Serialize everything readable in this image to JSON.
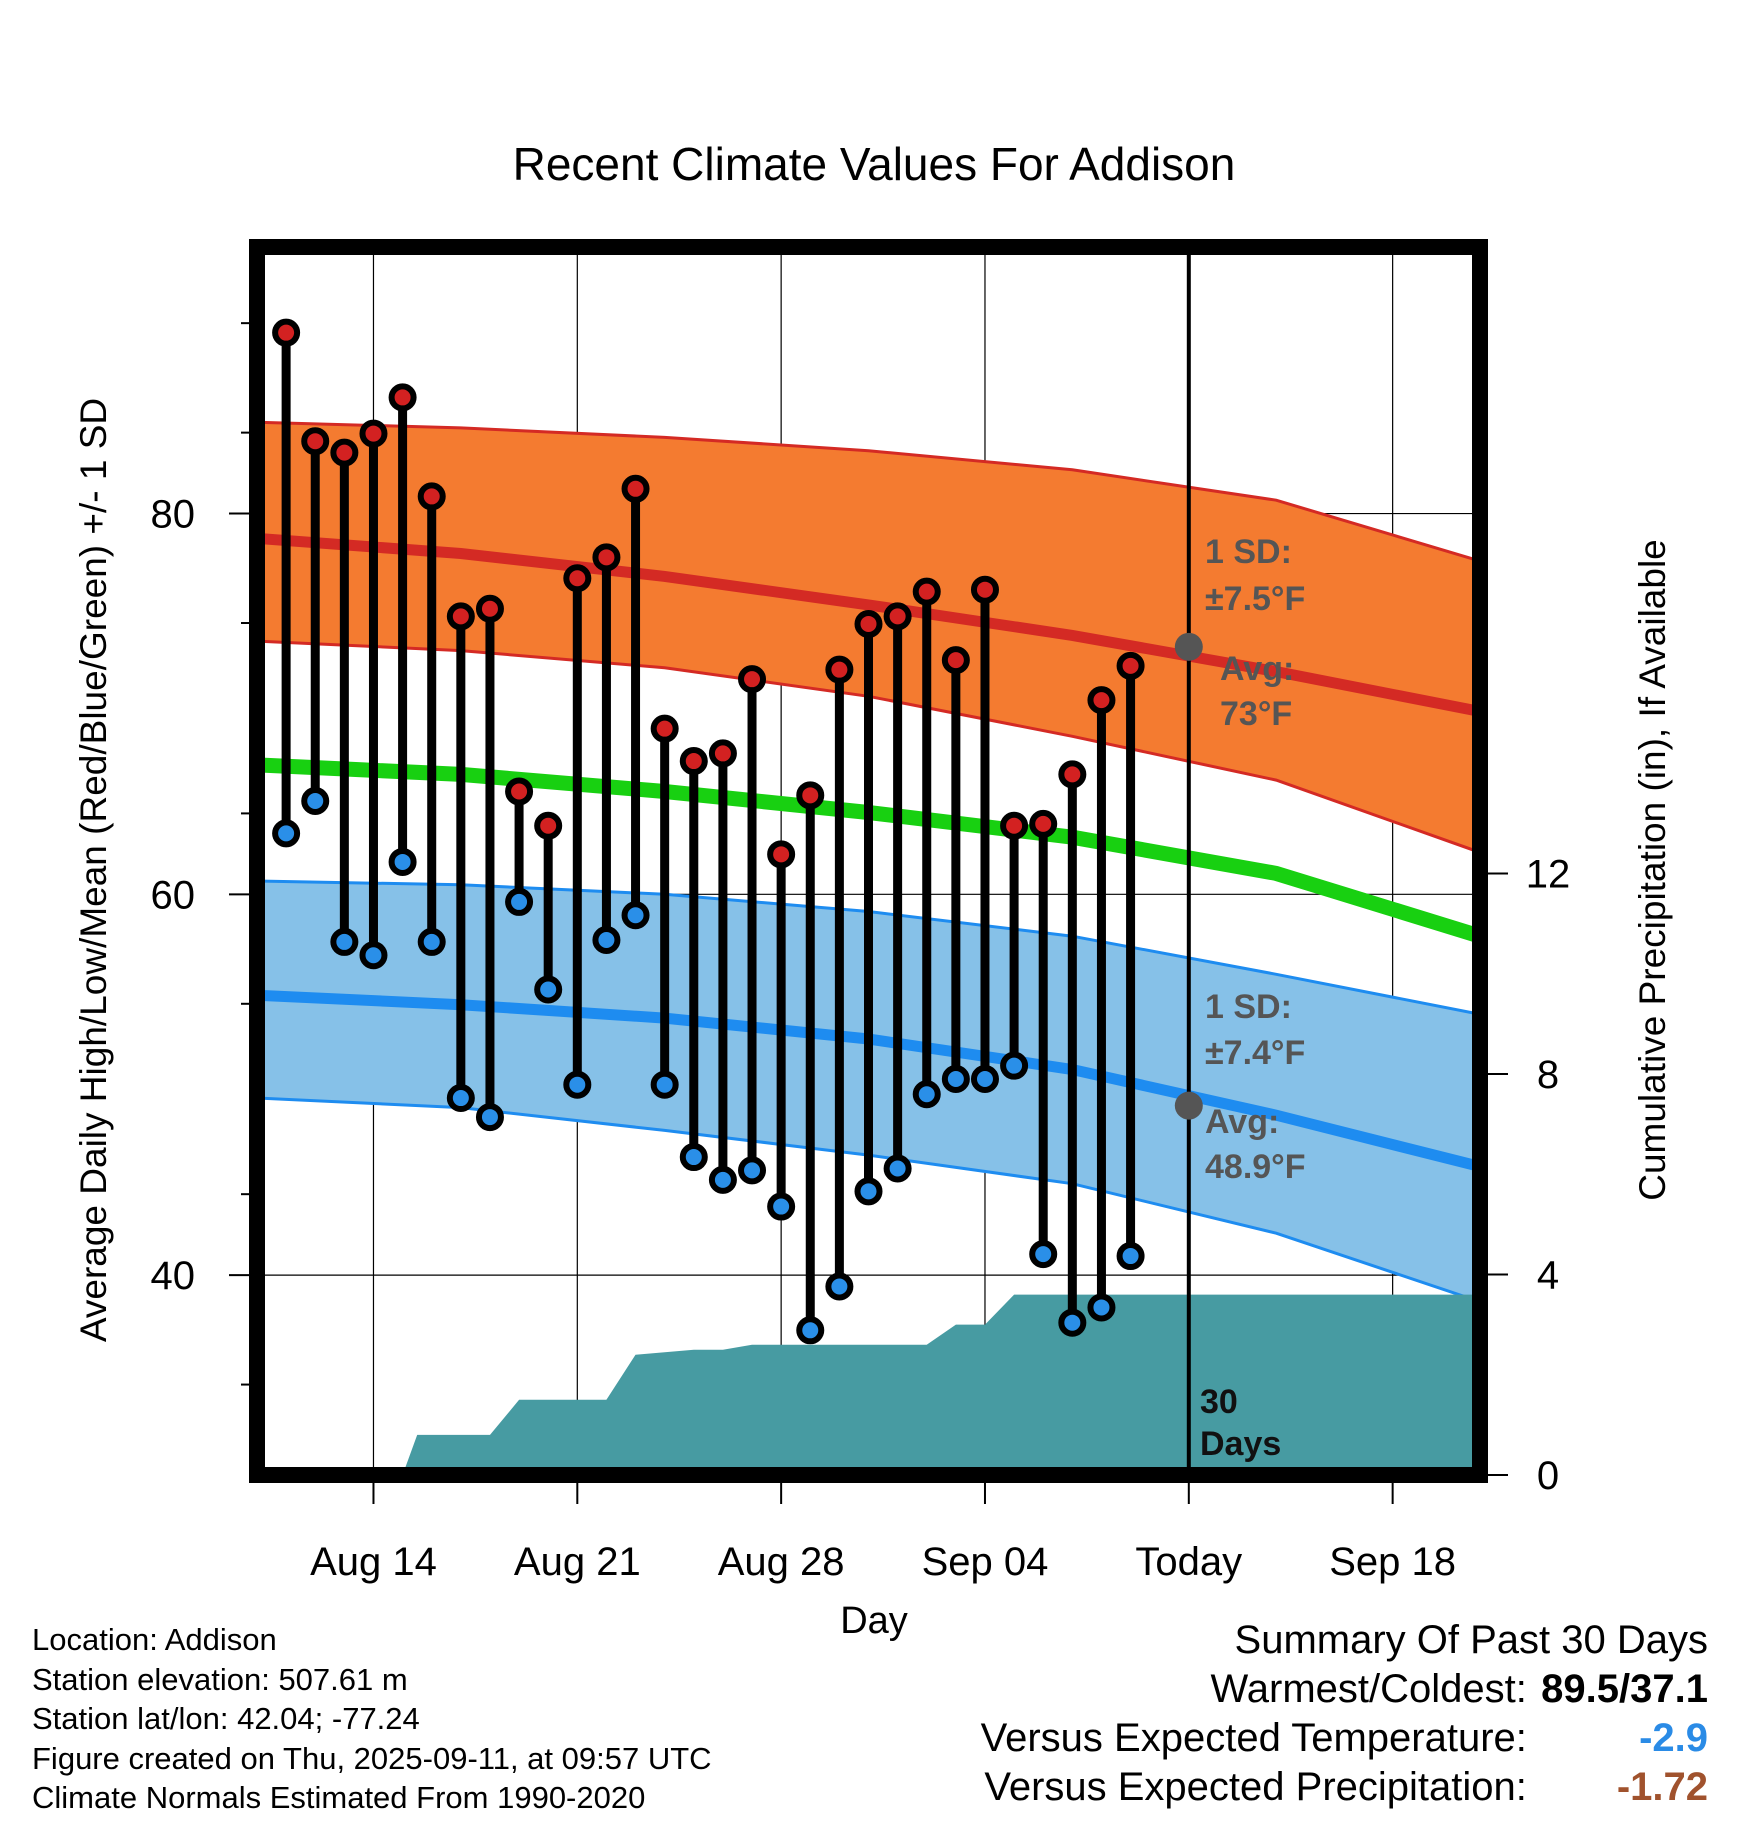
{
  "chart_data": {
    "type": "line",
    "title": "Recent Climate Values For Addison",
    "xlabel": "Day",
    "ylabel_left": "Average Daily High/Low/Mean (Red/Blue/Green) +/- 1 SD",
    "ylabel_right": "Cumulative Precipitation (in), If Available",
    "x_range": [
      "2025-08-10",
      "2025-09-21"
    ],
    "x_ticks": [
      {
        "date": "2025-08-14",
        "label": "Aug 14"
      },
      {
        "date": "2025-08-21",
        "label": "Aug 21"
      },
      {
        "date": "2025-08-28",
        "label": "Aug 28"
      },
      {
        "date": "2025-09-04",
        "label": "Sep 04"
      },
      {
        "date": "2025-09-11",
        "label": "Today"
      },
      {
        "date": "2025-09-18",
        "label": "Sep 18"
      }
    ],
    "today": "2025-09-11",
    "ylim_left": [
      29.5,
      94
    ],
    "yticks_left": [
      40,
      60,
      80
    ],
    "ylim_right": [
      0,
      24.5
    ],
    "yticks_right": [
      0,
      4,
      8,
      12
    ],
    "grid": true,
    "normals": {
      "high_mean": [
        [
          0,
          78.7
        ],
        [
          7,
          77.9
        ],
        [
          14,
          76.7
        ],
        [
          21,
          75.2
        ],
        [
          28,
          73.6
        ],
        [
          35,
          71.7
        ],
        [
          42,
          69.6
        ]
      ],
      "high_upper": [
        [
          0,
          84.8
        ],
        [
          7,
          84.5
        ],
        [
          14,
          84.0
        ],
        [
          21,
          83.3
        ],
        [
          28,
          82.3
        ],
        [
          35,
          80.7
        ],
        [
          42,
          77.5
        ]
      ],
      "high_lower": [
        [
          0,
          73.3
        ],
        [
          7,
          72.8
        ],
        [
          14,
          71.9
        ],
        [
          21,
          70.4
        ],
        [
          28,
          68.3
        ],
        [
          35,
          66.0
        ],
        [
          42,
          62.2
        ]
      ],
      "mean": [
        [
          0,
          66.8
        ],
        [
          7,
          66.3
        ],
        [
          14,
          65.4
        ],
        [
          21,
          64.3
        ],
        [
          28,
          63.0
        ],
        [
          35,
          61.1
        ],
        [
          42,
          57.8
        ]
      ],
      "low_mean": [
        [
          0,
          54.7
        ],
        [
          7,
          54.2
        ],
        [
          14,
          53.5
        ],
        [
          21,
          52.4
        ],
        [
          28,
          50.8
        ],
        [
          35,
          48.4
        ],
        [
          42,
          45.7
        ]
      ],
      "low_upper": [
        [
          0,
          60.7
        ],
        [
          7,
          60.5
        ],
        [
          14,
          60.0
        ],
        [
          21,
          59.1
        ],
        [
          28,
          57.8
        ],
        [
          35,
          55.8
        ],
        [
          42,
          53.7
        ]
      ],
      "low_lower": [
        [
          0,
          49.3
        ],
        [
          7,
          48.8
        ],
        [
          14,
          47.6
        ],
        [
          21,
          46.3
        ],
        [
          28,
          44.8
        ],
        [
          35,
          42.2
        ],
        [
          42,
          38.6
        ]
      ]
    },
    "high_annotation": {
      "line1": "1 SD:",
      "line2": "±7.5°F",
      "avg_label": "Avg:",
      "avg_value": "73°F",
      "avg": 73.0
    },
    "low_annotation": {
      "line1": "1 SD:",
      "line2": "±7.4°F",
      "avg_label": "Avg:",
      "avg_value": "48.9°F",
      "avg": 48.9
    },
    "daily": {
      "days": [
        1,
        2,
        3,
        4,
        5,
        6,
        7,
        8,
        9,
        10,
        11,
        12,
        13,
        14,
        15,
        16,
        17,
        18,
        19,
        20,
        21,
        22,
        23,
        24,
        25,
        26,
        27,
        28,
        29,
        30
      ],
      "high": [
        89.5,
        83.8,
        83.2,
        84.2,
        86.1,
        80.9,
        74.6,
        75.0,
        65.4,
        63.6,
        76.6,
        77.7,
        81.3,
        68.7,
        67.0,
        67.4,
        71.3,
        62.1,
        65.2,
        71.8,
        74.2,
        74.6,
        75.9,
        72.3,
        76.0,
        63.6,
        63.7,
        66.3,
        70.2,
        72.0
      ],
      "low": [
        63.2,
        64.9,
        57.5,
        56.8,
        61.7,
        57.5,
        49.3,
        48.3,
        59.6,
        55.0,
        50.0,
        57.6,
        58.9,
        50.0,
        46.2,
        45.0,
        45.5,
        43.6,
        37.1,
        39.4,
        44.4,
        45.6,
        49.5,
        50.3,
        50.3,
        51.0,
        41.1,
        37.5,
        38.3,
        41.0
      ]
    },
    "precip": {
      "label_line1": "30",
      "label_line2": "Days",
      "cumulative": [
        [
          5,
          0.0
        ],
        [
          5.5,
          0.8
        ],
        [
          7,
          0.8
        ],
        [
          8,
          0.8
        ],
        [
          9,
          1.5
        ],
        [
          11,
          1.5
        ],
        [
          12,
          1.5
        ],
        [
          13,
          2.4
        ],
        [
          15,
          2.5
        ],
        [
          16,
          2.5
        ],
        [
          17,
          2.6
        ],
        [
          23,
          2.6
        ],
        [
          24,
          3.0
        ],
        [
          25,
          3.0
        ],
        [
          26,
          3.6
        ],
        [
          32,
          3.6
        ],
        [
          42,
          3.6
        ]
      ]
    },
    "summary": {
      "title": "Summary Of Past 30 Days",
      "warmest_coldest_label": "Warmest/Coldest:",
      "warmest_coldest_value": "89.5/37.1",
      "temp_label": "Versus Expected Temperature:",
      "temp_value": "-2.9",
      "temp_color": "#2a8be6",
      "precip_label": "Versus Expected Precipitation:",
      "precip_value": "-1.72",
      "precip_color": "#a0522d"
    }
  },
  "info": {
    "location": "Location: Addison",
    "elevation": "Station elevation: 507.61 m",
    "latlon": "Station lat/lon: 42.04; -77.24",
    "created": "Figure created on Thu, 2025-09-11, at 09:57 UTC",
    "normals": "Climate Normals Estimated From 1990-2020"
  }
}
